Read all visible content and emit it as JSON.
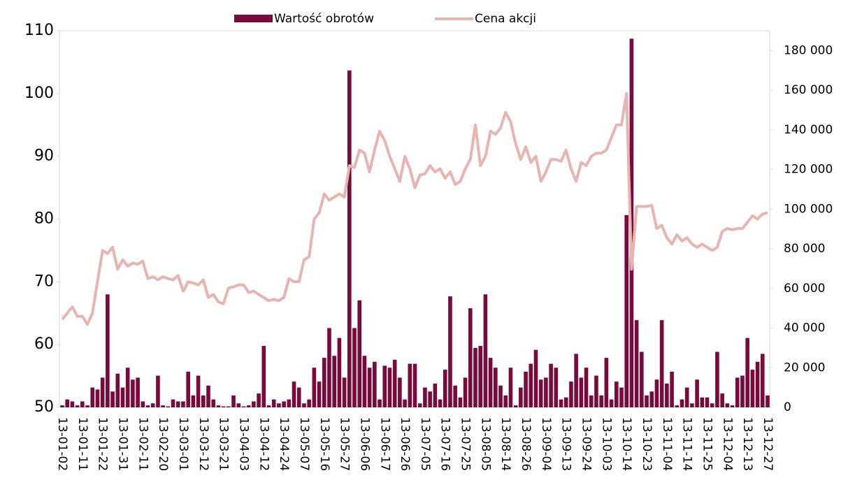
{
  "chart_data": {
    "type": "bar_line",
    "categories": [
      "13-01-02",
      null,
      null,
      null,
      "13-01-11",
      null,
      null,
      null,
      "13-01-22",
      null,
      null,
      null,
      "13-01-31",
      null,
      null,
      null,
      "13-02-11",
      null,
      null,
      null,
      "13-02-20",
      null,
      null,
      null,
      "13-03-01",
      null,
      null,
      null,
      "13-03-12",
      null,
      null,
      null,
      "13-03-21",
      null,
      null,
      null,
      "13-04-03",
      null,
      null,
      null,
      "13-04-12",
      null,
      null,
      null,
      "13-04-24",
      null,
      null,
      null,
      "13-05-07",
      null,
      null,
      null,
      "13-05-16",
      null,
      null,
      null,
      "13-05-27",
      null,
      null,
      null,
      "13-06-06",
      null,
      null,
      null,
      "13-06-17",
      null,
      null,
      null,
      "13-06-26",
      null,
      null,
      null,
      "13-07-05",
      null,
      null,
      null,
      "13-07-16",
      null,
      null,
      null,
      "13-07-25",
      null,
      null,
      null,
      "13-08-05",
      null,
      null,
      null,
      "13-08-14",
      null,
      null,
      null,
      "13-08-26",
      null,
      null,
      null,
      "13-09-04",
      null,
      null,
      null,
      "13-09-13",
      null,
      null,
      null,
      "13-09-24",
      null,
      null,
      null,
      "13-10-03",
      null,
      null,
      null,
      "13-10-14",
      null,
      null,
      null,
      "13-10-23",
      null,
      null,
      null,
      "13-11-04",
      null,
      null,
      null,
      "13-11-14",
      null,
      null,
      null,
      "13-11-25",
      null,
      null,
      null,
      "13-12-04",
      null,
      null,
      null,
      "13-12-13",
      null,
      null,
      null,
      "13-12-27"
    ],
    "series": [
      {
        "name": "Wartość obrotów",
        "color": "#7b0a3c",
        "axis": "y2",
        "kind": "bar",
        "values": [
          1000,
          4000,
          3000,
          1000,
          3000,
          1000,
          10000,
          9000,
          15000,
          57000,
          8000,
          17000,
          10000,
          20000,
          14000,
          15000,
          3000,
          1000,
          2000,
          16000,
          1000,
          500,
          4000,
          3000,
          3000,
          18000,
          6000,
          16000,
          6000,
          11000,
          4000,
          1000,
          500,
          500,
          6000,
          2000,
          500,
          1000,
          3000,
          7000,
          31000,
          1000,
          4000,
          2000,
          3000,
          4000,
          13000,
          10000,
          2000,
          4000,
          20000,
          13000,
          25000,
          40000,
          26000,
          35000,
          15000,
          170000,
          40000,
          54000,
          26000,
          20000,
          23000,
          4000,
          21000,
          20000,
          24000,
          15000,
          4000,
          22000,
          22000,
          2000,
          10000,
          8000,
          12000,
          4000,
          19000,
          56000,
          11000,
          5000,
          15000,
          50000,
          30000,
          31000,
          57000,
          25000,
          20000,
          11000,
          6000,
          20000,
          1000,
          10000,
          18000,
          22000,
          29000,
          14000,
          15000,
          22000,
          20000,
          4000,
          5000,
          13000,
          27000,
          15000,
          20000,
          6000,
          16000,
          6000,
          25000,
          4000,
          13000,
          10000,
          97000,
          186000,
          44000,
          28000,
          6000,
          8000,
          14000,
          44000,
          12000,
          18000,
          1000,
          4000,
          10000,
          2000,
          14000,
          5000,
          5000,
          2000,
          28000,
          7000,
          2000,
          1000,
          15000,
          16000,
          35000,
          19000,
          23000,
          27000,
          6000
        ]
      },
      {
        "name": "Cena akcji",
        "color": "#e8b4b0",
        "axis": "y",
        "kind": "line",
        "values": [
          64,
          65,
          66,
          64.5,
          64.5,
          63.2,
          65,
          70,
          75,
          74.5,
          75.5,
          72,
          73.5,
          72.5,
          73,
          72.8,
          73.3,
          70.5,
          70.8,
          70.3,
          70.8,
          70.5,
          70.3,
          71,
          68.5,
          70,
          69.8,
          69.5,
          70.3,
          67.5,
          68,
          66.8,
          66.5,
          69,
          69.2,
          69.5,
          69.5,
          68.3,
          68.5,
          68,
          67.5,
          67,
          67.2,
          67,
          67.5,
          70.5,
          70,
          70,
          73.5,
          74,
          80,
          81,
          84,
          83,
          83.5,
          84,
          83.5,
          88.5,
          88.2,
          91,
          90.5,
          87.5,
          91,
          94,
          92.5,
          90,
          88,
          86,
          90,
          88,
          85,
          87,
          87.2,
          88.5,
          87.5,
          88,
          86.5,
          87.5,
          85.5,
          86,
          88,
          89.5,
          95,
          88.5,
          90,
          94,
          93.5,
          94.5,
          97,
          95.5,
          92,
          89.5,
          91.5,
          89,
          90,
          86,
          87.5,
          89.5,
          89.5,
          89.2,
          91,
          88,
          86,
          89,
          88.5,
          90,
          90.5,
          90.5,
          91,
          93,
          95,
          95,
          100,
          72,
          82,
          82,
          82,
          82.2,
          78.5,
          79,
          77,
          76,
          77.5,
          76.5,
          77,
          76,
          75.5,
          76,
          75.5,
          75,
          75.5,
          78,
          78.5,
          78.3,
          78.5,
          78.5,
          79.5,
          80.5,
          80,
          80.8,
          81
        ]
      }
    ],
    "ylim": [
      50,
      110
    ],
    "yticks": [
      50,
      60,
      70,
      80,
      90,
      100,
      110
    ],
    "y2lim": [
      0,
      190000
    ],
    "y2ticks": [
      0,
      {
        "value": 20000,
        "label": "20 000"
      },
      {
        "value": 40000,
        "label": "40 000"
      },
      {
        "value": 60000,
        "label": "60 000"
      },
      {
        "value": 80000,
        "label": "80 000"
      },
      {
        "value": 100000,
        "label": "100 000"
      },
      {
        "value": 120000,
        "label": "120 000"
      },
      {
        "value": 140000,
        "label": "140 000"
      },
      {
        "value": 160000,
        "label": "160 000"
      },
      {
        "value": 180000,
        "label": "180 000"
      }
    ],
    "legend": "top"
  }
}
